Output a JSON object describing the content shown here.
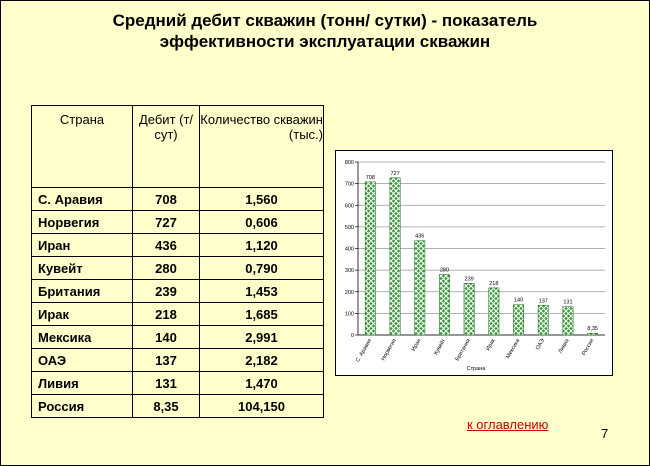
{
  "slide": {
    "title_line1": "Средний дебит скважин (тонн/ сутки) - показатель",
    "title_line2": "эффективности эксплуатации скважин",
    "link_text": "к оглавлению",
    "page_number": "7"
  },
  "table": {
    "headers": [
      "Страна",
      "Дебит (т/сут)",
      "Количество скважин (тыс.)"
    ],
    "rows": [
      [
        "С. Аравия",
        "708",
        "1,560"
      ],
      [
        "Норвегия",
        "727",
        "0,606"
      ],
      [
        "Иран",
        "436",
        "1,120"
      ],
      [
        "Кувейт",
        "280",
        "0,790"
      ],
      [
        "Британия",
        "239",
        "1,453"
      ],
      [
        "Ирак",
        "218",
        "1,685"
      ],
      [
        "Мексика",
        "140",
        "2,991"
      ],
      [
        "ОАЭ",
        "137",
        "2,182"
      ],
      [
        "Ливия",
        "131",
        "1,470"
      ],
      [
        "Россия",
        "8,35",
        "104,150"
      ]
    ]
  },
  "chart_data": {
    "type": "bar",
    "categories": [
      "С. Аравия",
      "Норвегия",
      "Иран",
      "Кувейт",
      "Британия",
      "Ирак",
      "Мексика",
      "ОАЭ",
      "Ливия",
      "Россия"
    ],
    "values": [
      708,
      727,
      436,
      280,
      239,
      218,
      140,
      137,
      131,
      8.35
    ],
    "value_labels": [
      "708",
      "727",
      "436",
      "280",
      "239",
      "218",
      "140",
      "137",
      "131",
      "8,35"
    ],
    "xlabel": "Страна",
    "ylabel": "",
    "ylim": [
      0,
      800
    ],
    "yticks": [
      0,
      100,
      200,
      300,
      400,
      500,
      600,
      700,
      800
    ],
    "grid": true,
    "bar_color": "#339933",
    "legend": "none"
  }
}
